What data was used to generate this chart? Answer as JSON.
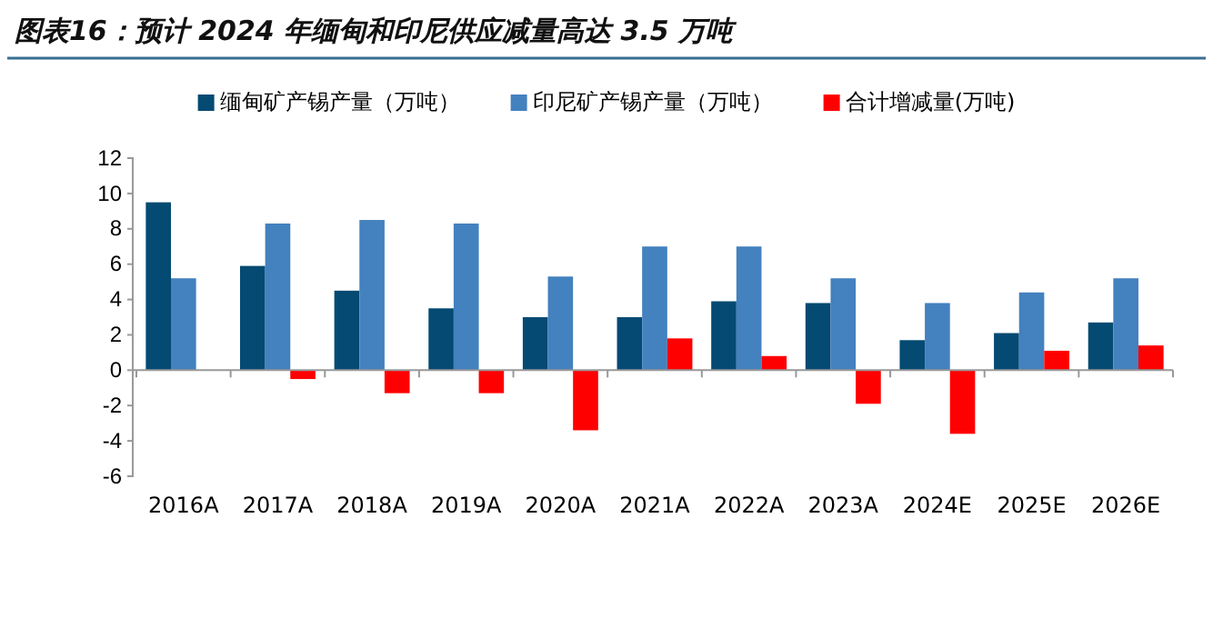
{
  "chart_data": {
    "type": "bar",
    "title": "图表16：预计 2024 年缅甸和印尼供应减量高达 3.5 万吨",
    "categories": [
      "2016A",
      "2017A",
      "2018A",
      "2019A",
      "2020A",
      "2021A",
      "2022A",
      "2023A",
      "2024E",
      "2025E",
      "2026E"
    ],
    "series": [
      {
        "name": "缅甸矿产锡产量（万吨）",
        "color": "#044a72",
        "values": [
          9.5,
          5.9,
          4.5,
          3.5,
          3.0,
          3.0,
          3.9,
          3.8,
          1.7,
          2.1,
          2.7
        ]
      },
      {
        "name": "印尼矿产锡产量（万吨）",
        "color": "#4381bf",
        "values": [
          5.2,
          8.3,
          8.5,
          8.3,
          5.3,
          7.0,
          7.0,
          5.2,
          3.8,
          4.4,
          5.2
        ]
      },
      {
        "name": "合计增减量(万吨)",
        "color": "#ff0000",
        "values": [
          null,
          -0.5,
          -1.3,
          -1.3,
          -3.4,
          1.8,
          0.8,
          -1.9,
          -3.6,
          1.1,
          1.4
        ]
      }
    ],
    "ylim": [
      -6,
      12
    ],
    "yticks": [
      -6,
      -4,
      -2,
      0,
      2,
      4,
      6,
      8,
      10,
      12
    ],
    "legend": "top"
  }
}
